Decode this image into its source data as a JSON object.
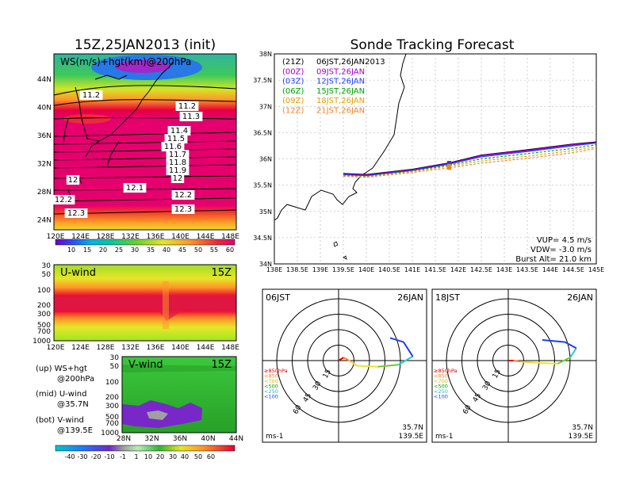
{
  "titles": {
    "left": "15Z,25JAN2013 (init)",
    "right": "Sonde Tracking Forecast"
  },
  "ws_map": {
    "label": "WS(m/s)+hgt(km)@200hPa",
    "lat_labels": [
      "44N",
      "40N",
      "36N",
      "32N",
      "28N",
      "24N"
    ],
    "lon_labels": [
      "120E",
      "124E",
      "128E",
      "132E",
      "136E",
      "140E",
      "144E",
      "148E"
    ],
    "contour_labels": [
      "11.2",
      "11.2",
      "11.3",
      "11.4",
      "11.5",
      "11.6",
      "11.7",
      "11.8",
      "11.9",
      "12",
      "12",
      "12.1",
      "12.2",
      "12.2",
      "12.3",
      "12.3"
    ],
    "colorbar_labels": [
      "10",
      "15",
      "20",
      "25",
      "30",
      "35",
      "40",
      "45",
      "50",
      "55",
      "60"
    ]
  },
  "u_panel": {
    "label": "U-wind",
    "time": "15Z",
    "p_labels": [
      "30",
      "50",
      "100",
      "200",
      "300",
      "500",
      "700",
      "1000"
    ],
    "lon_labels": [
      "120E",
      "124E",
      "128E",
      "132E",
      "136E",
      "140E",
      "144E",
      "148E"
    ]
  },
  "v_panel": {
    "label": "V-wind",
    "time": "15Z",
    "p_labels": [
      "30",
      "50",
      "100",
      "200",
      "300",
      "500",
      "700",
      "1000"
    ],
    "lat_labels": [
      "28N",
      "32N",
      "36N",
      "40N",
      "44N"
    ],
    "colorbar_labels": [
      "-40",
      "-30",
      "-20",
      "-10",
      "-1",
      "1",
      "10",
      "20",
      "30",
      "40",
      "50",
      "60"
    ]
  },
  "legend_text": {
    "up": [
      "(up) WS+hgt",
      "@200hPa"
    ],
    "mid": [
      "(mid) U-wind",
      "@35.7N"
    ],
    "bot": [
      "(bot) V-wind",
      "@139.5E"
    ]
  },
  "track_map": {
    "lat_labels": [
      "38N",
      "37.5N",
      "37N",
      "36.5N",
      "36N",
      "35.5N",
      "35N",
      "34.5N",
      "34N"
    ],
    "lon_labels": [
      "138E",
      "138.5E",
      "139E",
      "139.5E",
      "140E",
      "140.5E",
      "141E",
      "141.5E",
      "142E",
      "142.5E",
      "143E",
      "143.5E",
      "144E",
      "144.5E",
      "145E"
    ],
    "legend": [
      {
        "utc": "(21Z)",
        "jst": "06JST,26JAN2013",
        "color": "#000000"
      },
      {
        "utc": "(00Z)",
        "jst": "09JST,26JAN",
        "color": "#a000c8"
      },
      {
        "utc": "(03Z)",
        "jst": "12JST,26JAN",
        "color": "#1e3cff"
      },
      {
        "utc": "(06Z)",
        "jst": "15JST,26JAN",
        "color": "#00a000"
      },
      {
        "utc": "(09Z)",
        "jst": "18JST,26JAN",
        "color": "#e6a000"
      },
      {
        "utc": "(12Z)",
        "jst": "21JST,26JAN",
        "color": "#f08228"
      }
    ],
    "params": [
      "VUP= 4.5 m/s",
      "VDW= -3.0 m/s",
      "Burst Alt= 21.0 km"
    ]
  },
  "chart_data": [
    {
      "type": "line",
      "panel": "Sonde Tracking Forecast",
      "x_axis": "longitude",
      "xlim": [
        138.0,
        145.0
      ],
      "y_axis": "latitude",
      "ylim": [
        34.0,
        38.0
      ],
      "series": [
        {
          "name": "06JST,26JAN2013",
          "x": [
            139.5,
            140.0,
            141.0,
            141.8,
            142.5,
            143.5,
            144.5,
            145.0
          ],
          "y": [
            35.72,
            35.7,
            35.8,
            35.92,
            36.07,
            36.17,
            36.28,
            36.32
          ]
        },
        {
          "name": "09JST,26JAN",
          "x": [
            139.5,
            140.0,
            141.0,
            141.8,
            142.5,
            143.5,
            144.5,
            145.0
          ],
          "y": [
            35.71,
            35.69,
            35.79,
            35.91,
            36.06,
            36.16,
            36.27,
            36.31
          ]
        },
        {
          "name": "12JST,26JAN",
          "x": [
            139.5,
            140.0,
            141.0,
            141.8,
            142.5,
            143.5,
            144.5,
            145.0
          ],
          "y": [
            35.7,
            35.68,
            35.78,
            35.9,
            36.04,
            36.14,
            36.25,
            36.3
          ]
        },
        {
          "name": "15JST,26JAN",
          "x": [
            139.5,
            140.0,
            141.0,
            141.8,
            142.5,
            143.5,
            144.5,
            145.0
          ],
          "y": [
            35.69,
            35.67,
            35.77,
            35.88,
            36.0,
            36.1,
            36.2,
            36.27
          ]
        },
        {
          "name": "18JST,26JAN",
          "x": [
            139.5,
            140.0,
            141.0,
            141.8,
            142.5,
            143.5,
            144.5,
            145.0
          ],
          "y": [
            35.68,
            35.66,
            35.76,
            35.86,
            35.96,
            36.05,
            36.16,
            36.23
          ]
        },
        {
          "name": "21JST,26JAN",
          "x": [
            139.5,
            140.0,
            141.0,
            141.8,
            142.5,
            143.5,
            144.5,
            145.0
          ],
          "y": [
            35.67,
            35.65,
            35.74,
            35.83,
            35.92,
            36.01,
            36.12,
            36.2
          ]
        }
      ]
    },
    {
      "type": "line",
      "panel": "hodograph 06JST",
      "title_left": "06JST",
      "title_right": "26JAN",
      "units": "ms-1",
      "location": [
        "35.7N",
        "139.5E"
      ],
      "ring_labels": [
        "15",
        "30",
        "45",
        "60"
      ],
      "pressure_legend": [
        "≥850hPa",
        "<850",
        "<700",
        "<500",
        "<250",
        "<100"
      ],
      "x": [
        0,
        5,
        10,
        18,
        38,
        58,
        72,
        63,
        50
      ],
      "y": [
        0,
        3,
        0,
        -5,
        -6,
        -4,
        4,
        18,
        22
      ]
    },
    {
      "type": "line",
      "panel": "hodograph 18JST",
      "title_left": "18JST",
      "title_right": "26JAN",
      "units": "ms-1",
      "location": [
        "35.7N",
        "139.5E"
      ],
      "ring_labels": [
        "15",
        "30",
        "45",
        "60"
      ],
      "pressure_legend": [
        "≥850hPa",
        "<850",
        "<700",
        "<500",
        "<250",
        "<100"
      ],
      "x": [
        0,
        5,
        12,
        25,
        48,
        60,
        66,
        55,
        33
      ],
      "y": [
        0,
        0,
        -1,
        -2,
        -3,
        3,
        12,
        18,
        20
      ]
    }
  ],
  "colors": {
    "jet_core": "#e6003c",
    "hodo_surface": "#dc0000",
    "hodo_mid": "#f5d232",
    "hodo_upper": "#28c8c8",
    "hodo_top": "#1e3cff"
  }
}
